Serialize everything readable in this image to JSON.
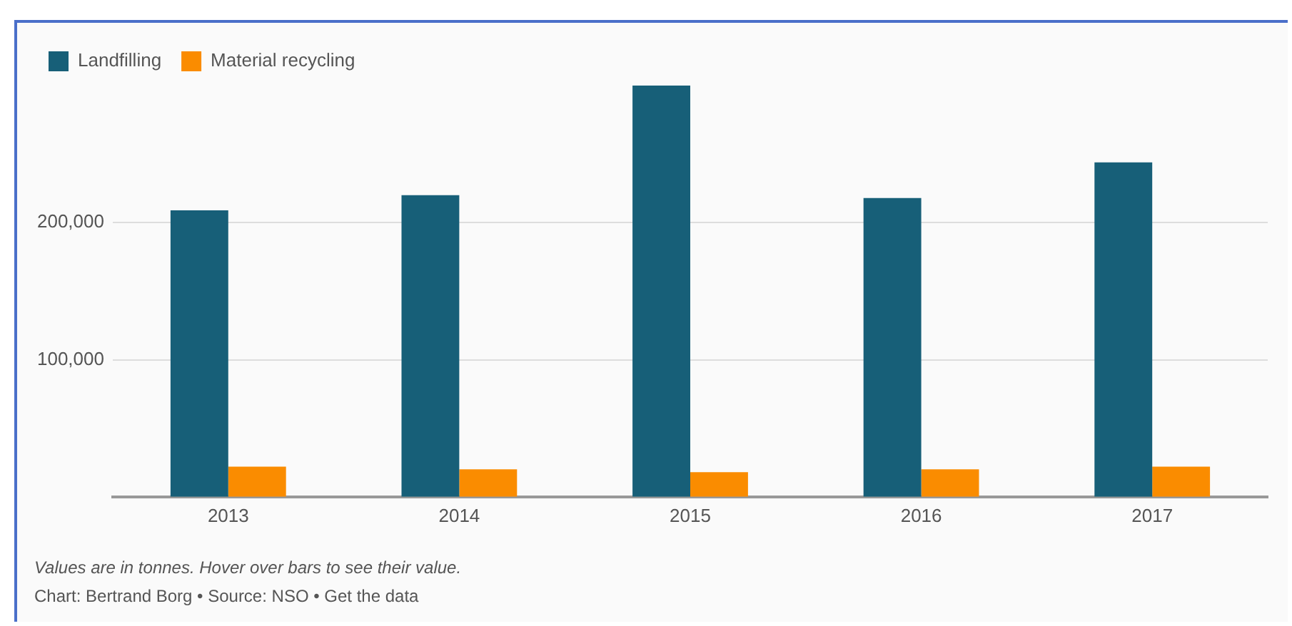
{
  "chart_data": {
    "type": "bar",
    "categories": [
      "2013",
      "2014",
      "2015",
      "2016",
      "2017"
    ],
    "series": [
      {
        "name": "Landfilling",
        "color": "#175f78",
        "values": [
          209000,
          220000,
          300000,
          218000,
          244000
        ]
      },
      {
        "name": "Material recycling",
        "color": "#fa8c00",
        "values": [
          22000,
          20000,
          18000,
          20000,
          22000
        ]
      }
    ],
    "yticks": [
      {
        "value": 100000,
        "label": "100,000"
      },
      {
        "value": 200000,
        "label": "200,000"
      }
    ],
    "ylim": [
      0,
      300000
    ],
    "grid": "y",
    "legend": "top left",
    "annotations": [
      "Values are in tonnes. Hover over bars to see their value.",
      "Chart: Bertrand Borg • Source: NSO • Get the data"
    ]
  }
}
